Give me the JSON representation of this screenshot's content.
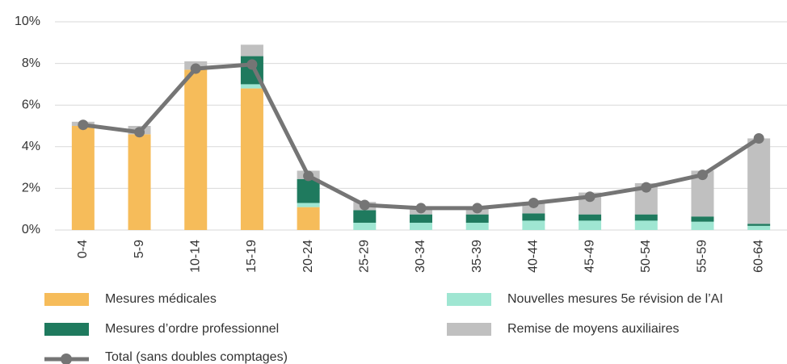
{
  "chart_data": {
    "type": "bar",
    "categories": [
      "0-4",
      "5-9",
      "10-14",
      "15-19",
      "20-24",
      "25-29",
      "30-34",
      "35-39",
      "40-44",
      "45-49",
      "50-54",
      "55-59",
      "60-64"
    ],
    "series": [
      {
        "name": "Mesures médicales",
        "color": "#f6bc5a",
        "values": [
          5.0,
          4.6,
          7.7,
          6.8,
          1.1,
          0,
          0,
          0,
          0,
          0,
          0,
          0,
          0
        ]
      },
      {
        "name": "Nouvelles mesures 5e révision de l’AI",
        "color": "#9fe6d2",
        "values": [
          0,
          0,
          0,
          0.2,
          0.2,
          0.35,
          0.35,
          0.35,
          0.45,
          0.45,
          0.45,
          0.4,
          0.2
        ]
      },
      {
        "name": "Mesures d’ordre professionnel",
        "color": "#1f7a5e",
        "values": [
          0,
          0,
          0,
          1.35,
          1.15,
          0.6,
          0.4,
          0.4,
          0.35,
          0.3,
          0.3,
          0.25,
          0.1
        ]
      },
      {
        "name": "Remise de moyens auxiliaires",
        "color": "#c0c0c0",
        "values": [
          0.2,
          0.4,
          0.4,
          0.55,
          0.4,
          0.4,
          0.3,
          0.3,
          0.55,
          1.05,
          1.5,
          2.2,
          4.1
        ]
      }
    ],
    "line_series": {
      "name": "Total (sans doubles comptages)",
      "color": "#757575",
      "values": [
        5.05,
        4.7,
        7.75,
        7.95,
        2.6,
        1.2,
        1.05,
        1.05,
        1.3,
        1.6,
        2.05,
        2.65,
        4.4
      ]
    },
    "ylim": [
      0,
      10
    ],
    "yticks": [
      {
        "value": 0,
        "label": "0%"
      },
      {
        "value": 2,
        "label": "2%"
      },
      {
        "value": 4,
        "label": "4%"
      },
      {
        "value": 6,
        "label": "6%"
      },
      {
        "value": 8,
        "label": "8%"
      },
      {
        "value": 10,
        "label": "10%"
      }
    ],
    "grid": true
  }
}
